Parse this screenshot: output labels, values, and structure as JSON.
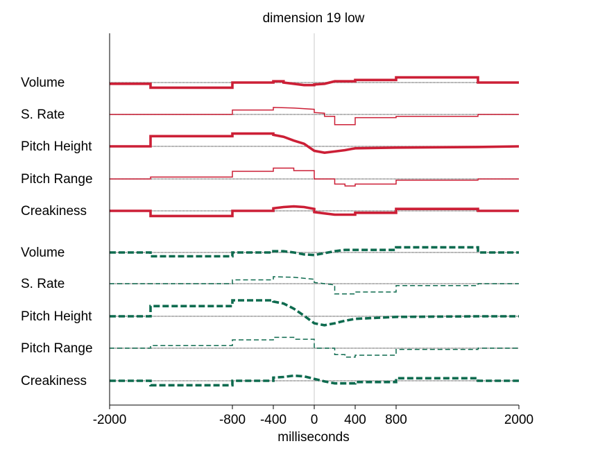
{
  "chart_data": {
    "type": "line",
    "title": "dimension 19 low",
    "xlabel": "milliseconds",
    "ylabel": "",
    "xlim": [
      -2000,
      2000
    ],
    "xticks": [
      -2000,
      -800,
      -400,
      0,
      400,
      800,
      2000
    ],
    "xtick_labels": [
      "-2000",
      "-800",
      "-400",
      "0",
      "400",
      "800",
      "2000"
    ],
    "grid": false,
    "reference_line_x": 0,
    "groups": [
      {
        "color": "#cc1f36",
        "style": "solid",
        "series": [
          {
            "label": "Volume",
            "weight": "thick",
            "points": [
              [
                -2000,
                -0.4
              ],
              [
                -1600,
                -0.4
              ],
              [
                -1600,
                -1.6
              ],
              [
                -800,
                -1.6
              ],
              [
                -800,
                0
              ],
              [
                -400,
                0
              ],
              [
                -400,
                0.4
              ],
              [
                -300,
                0.4
              ],
              [
                -300,
                0
              ],
              [
                -200,
                -0.4
              ],
              [
                -100,
                -0.8
              ],
              [
                0,
                -0.8
              ],
              [
                0,
                -0.6
              ],
              [
                100,
                -0.4
              ],
              [
                200,
                0.4
              ],
              [
                400,
                0.4
              ],
              [
                400,
                0.8
              ],
              [
                800,
                0.8
              ],
              [
                800,
                1.6
              ],
              [
                1600,
                1.6
              ],
              [
                1600,
                0
              ],
              [
                2000,
                0
              ]
            ]
          },
          {
            "label": "S. Rate",
            "weight": "thin",
            "points": [
              [
                -2000,
                0
              ],
              [
                -800,
                0
              ],
              [
                -800,
                1.4
              ],
              [
                -400,
                1.4
              ],
              [
                -400,
                2.2
              ],
              [
                -200,
                2.0
              ],
              [
                0,
                1.6
              ],
              [
                0,
                0.6
              ],
              [
                100,
                0.4
              ],
              [
                100,
                -0.6
              ],
              [
                200,
                -0.6
              ],
              [
                200,
                -3.2
              ],
              [
                400,
                -3.2
              ],
              [
                400,
                -1.0
              ],
              [
                800,
                -1.0
              ],
              [
                800,
                -0.6
              ],
              [
                1600,
                -0.6
              ],
              [
                1600,
                0
              ],
              [
                2000,
                0
              ]
            ]
          },
          {
            "label": "Pitch Height",
            "weight": "thick",
            "points": [
              [
                -2000,
                0
              ],
              [
                -1600,
                0
              ],
              [
                -1600,
                3.2
              ],
              [
                -800,
                3.2
              ],
              [
                -800,
                4.0
              ],
              [
                -400,
                4.0
              ],
              [
                -400,
                3.6
              ],
              [
                -300,
                3.0
              ],
              [
                -200,
                1.8
              ],
              [
                -100,
                0.8
              ],
              [
                0,
                -1.4
              ],
              [
                100,
                -2.0
              ],
              [
                200,
                -1.6
              ],
              [
                300,
                -1.2
              ],
              [
                400,
                -0.6
              ],
              [
                800,
                -0.4
              ],
              [
                1600,
                -0.2
              ],
              [
                2000,
                0
              ]
            ]
          },
          {
            "label": "Pitch Range",
            "weight": "thin",
            "points": [
              [
                -2000,
                0
              ],
              [
                -1600,
                0
              ],
              [
                -1600,
                0.6
              ],
              [
                -800,
                0.6
              ],
              [
                -800,
                2.4
              ],
              [
                -400,
                2.4
              ],
              [
                -400,
                3.4
              ],
              [
                -200,
                3.4
              ],
              [
                -200,
                2.6
              ],
              [
                0,
                2.6
              ],
              [
                0,
                0
              ],
              [
                200,
                0
              ],
              [
                200,
                -1.6
              ],
              [
                300,
                -1.6
              ],
              [
                300,
                -2.2
              ],
              [
                400,
                -2.2
              ],
              [
                400,
                -1.6
              ],
              [
                800,
                -1.6
              ],
              [
                800,
                -0.4
              ],
              [
                1600,
                -0.4
              ],
              [
                1600,
                0
              ],
              [
                2000,
                0
              ]
            ]
          },
          {
            "label": "Creakiness",
            "weight": "thick",
            "points": [
              [
                -2000,
                0
              ],
              [
                -1600,
                0
              ],
              [
                -1600,
                -1.6
              ],
              [
                -800,
                -1.6
              ],
              [
                -800,
                0
              ],
              [
                -400,
                0
              ],
              [
                -400,
                0.8
              ],
              [
                -300,
                1.2
              ],
              [
                -200,
                1.4
              ],
              [
                -100,
                1.2
              ],
              [
                0,
                0.6
              ],
              [
                0,
                -0.4
              ],
              [
                100,
                -0.8
              ],
              [
                200,
                -1.2
              ],
              [
                400,
                -1.2
              ],
              [
                400,
                -0.6
              ],
              [
                800,
                -0.6
              ],
              [
                800,
                0.6
              ],
              [
                1600,
                0.6
              ],
              [
                1600,
                0
              ],
              [
                2000,
                0
              ]
            ]
          }
        ]
      },
      {
        "color": "#0e6b4f",
        "style": "dashed",
        "series": [
          {
            "label": "Volume",
            "weight": "thick",
            "points": [
              [
                -2000,
                0
              ],
              [
                -1600,
                0
              ],
              [
                -1600,
                -1.2
              ],
              [
                -800,
                -1.2
              ],
              [
                -800,
                0
              ],
              [
                -400,
                0
              ],
              [
                -400,
                0.4
              ],
              [
                -300,
                0.4
              ],
              [
                -200,
                0
              ],
              [
                -100,
                -0.6
              ],
              [
                0,
                -0.8
              ],
              [
                100,
                -0.2
              ],
              [
                200,
                0.4
              ],
              [
                300,
                0.8
              ],
              [
                400,
                0.8
              ],
              [
                800,
                0.8
              ],
              [
                800,
                1.6
              ],
              [
                1600,
                1.6
              ],
              [
                1600,
                0
              ],
              [
                2000,
                0
              ]
            ]
          },
          {
            "label": "S. Rate",
            "weight": "thin",
            "points": [
              [
                -2000,
                0
              ],
              [
                -800,
                0
              ],
              [
                -800,
                1.2
              ],
              [
                -400,
                1.2
              ],
              [
                -400,
                2.2
              ],
              [
                -200,
                2.0
              ],
              [
                0,
                1.4
              ],
              [
                0,
                0.4
              ],
              [
                100,
                0
              ],
              [
                200,
                -0.4
              ],
              [
                200,
                -3.2
              ],
              [
                400,
                -3.2
              ],
              [
                400,
                -2.6
              ],
              [
                800,
                -2.6
              ],
              [
                800,
                -0.6
              ],
              [
                1600,
                -0.6
              ],
              [
                1600,
                0
              ],
              [
                2000,
                0
              ]
            ]
          },
          {
            "label": "Pitch Height",
            "weight": "thick",
            "points": [
              [
                -2000,
                0
              ],
              [
                -1600,
                0
              ],
              [
                -1600,
                3.2
              ],
              [
                -800,
                3.2
              ],
              [
                -800,
                5.0
              ],
              [
                -400,
                5.0
              ],
              [
                -400,
                4.6
              ],
              [
                -300,
                4.0
              ],
              [
                -200,
                2.4
              ],
              [
                -100,
                0.2
              ],
              [
                0,
                -2.2
              ],
              [
                100,
                -2.8
              ],
              [
                200,
                -2.2
              ],
              [
                300,
                -1.4
              ],
              [
                400,
                -0.8
              ],
              [
                800,
                -0.2
              ],
              [
                1600,
                0
              ],
              [
                2000,
                0
              ]
            ]
          },
          {
            "label": "Pitch Range",
            "weight": "thin",
            "points": [
              [
                -2000,
                0
              ],
              [
                -1600,
                0
              ],
              [
                -1600,
                0.8
              ],
              [
                -800,
                0.8
              ],
              [
                -800,
                2.6
              ],
              [
                -400,
                2.6
              ],
              [
                -400,
                3.4
              ],
              [
                -200,
                3.4
              ],
              [
                -200,
                2.8
              ],
              [
                0,
                2.8
              ],
              [
                0,
                0
              ],
              [
                200,
                0
              ],
              [
                200,
                -2.0
              ],
              [
                300,
                -2.0
              ],
              [
                300,
                -2.8
              ],
              [
                400,
                -2.8
              ],
              [
                400,
                -2.2
              ],
              [
                800,
                -2.2
              ],
              [
                800,
                -0.4
              ],
              [
                1600,
                -0.4
              ],
              [
                1600,
                0
              ],
              [
                2000,
                0
              ]
            ]
          },
          {
            "label": "Creakiness",
            "weight": "thick",
            "points": [
              [
                -2000,
                0
              ],
              [
                -1600,
                0
              ],
              [
                -1600,
                -1.4
              ],
              [
                -800,
                -1.4
              ],
              [
                -800,
                0
              ],
              [
                -400,
                0
              ],
              [
                -400,
                1.0
              ],
              [
                -300,
                1.2
              ],
              [
                -200,
                1.6
              ],
              [
                -100,
                1.4
              ],
              [
                0,
                0.6
              ],
              [
                100,
                -0.2
              ],
              [
                200,
                -0.8
              ],
              [
                400,
                -0.8
              ],
              [
                400,
                -0.4
              ],
              [
                800,
                -0.4
              ],
              [
                800,
                0.8
              ],
              [
                1600,
                0.8
              ],
              [
                1600,
                0
              ],
              [
                2000,
                0
              ]
            ]
          }
        ]
      }
    ]
  }
}
